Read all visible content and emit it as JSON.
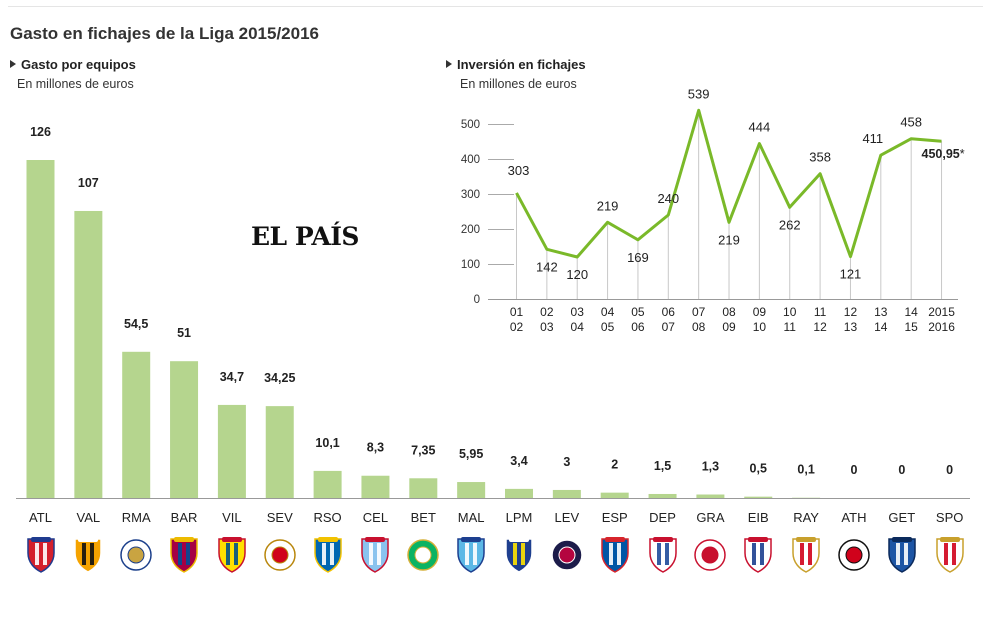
{
  "title": "Gasto en fichajes de la Liga 2015/2016",
  "bar_section": {
    "title": "Gasto por equipos",
    "subtitle": "En millones de euros"
  },
  "line_section": {
    "title": "Inversión en fichajes",
    "subtitle": "En millones de euros"
  },
  "logo_text": "EL PAÍS",
  "colors": {
    "bar": "#b5d58e",
    "line": "#7ab929",
    "axis": "#999999",
    "text": "#333333"
  },
  "chart_data": [
    {
      "type": "bar",
      "title": "Gasto por equipos",
      "subtitle": "En millones de euros",
      "categories": [
        "ATL",
        "VAL",
        "RMA",
        "BAR",
        "VIL",
        "SEV",
        "RSO",
        "CEL",
        "BET",
        "MAL",
        "LPM",
        "LEV",
        "ESP",
        "DEP",
        "GRA",
        "EIB",
        "RAY",
        "ATH",
        "GET",
        "SPO"
      ],
      "values": [
        126,
        107,
        54.5,
        51,
        34.7,
        34.25,
        10.1,
        8.3,
        7.35,
        5.95,
        3.4,
        3,
        2,
        1.5,
        1.3,
        0.5,
        0.1,
        0,
        0,
        0
      ],
      "labels": [
        "126",
        "107",
        "54,5",
        "51",
        "34,7",
        "34,25",
        "10,1",
        "8,3",
        "7,35",
        "5,95",
        "3,4",
        "3",
        "2",
        "1,5",
        "1,3",
        "0,5",
        "0,1",
        "0",
        "0",
        "0"
      ],
      "ylim": [
        0,
        126
      ],
      "grid": false
    },
    {
      "type": "line",
      "title": "Inversión en fichajes",
      "subtitle": "En millones de euros",
      "x": [
        [
          "01",
          "02"
        ],
        [
          "02",
          "03"
        ],
        [
          "03",
          "04"
        ],
        [
          "04",
          "05"
        ],
        [
          "05",
          "06"
        ],
        [
          "06",
          "07"
        ],
        [
          "07",
          "08"
        ],
        [
          "08",
          "09"
        ],
        [
          "09",
          "10"
        ],
        [
          "10",
          "11"
        ],
        [
          "11",
          "12"
        ],
        [
          "12",
          "13"
        ],
        [
          "13",
          "14"
        ],
        [
          "14",
          "15"
        ],
        [
          "2015",
          "2016"
        ]
      ],
      "values": [
        303,
        142,
        120,
        219,
        169,
        240,
        539,
        219,
        444,
        262,
        358,
        121,
        411,
        458,
        450.95
      ],
      "labels": [
        "303",
        "142",
        "120",
        "219",
        "169",
        "240",
        "539",
        "219",
        "444",
        "262",
        "358",
        "121",
        "411",
        "458",
        "450,95*"
      ],
      "yticks": [
        0,
        100,
        200,
        300,
        400,
        500
      ],
      "ylim": [
        0,
        539
      ],
      "grid": true
    }
  ]
}
